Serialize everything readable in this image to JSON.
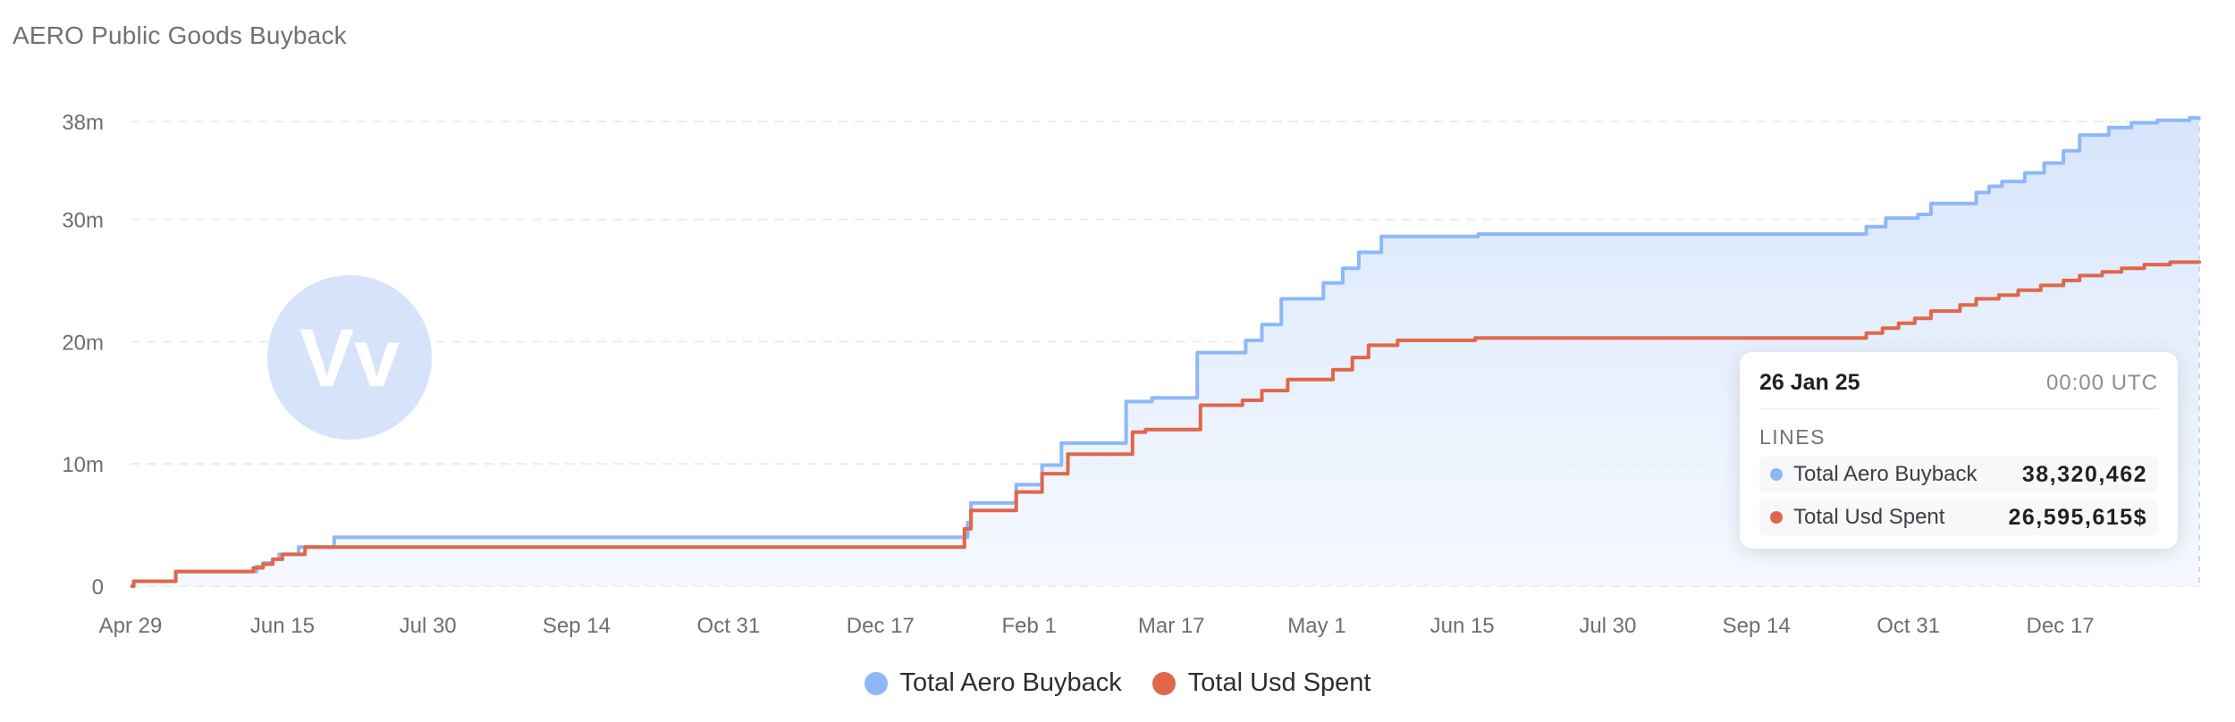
{
  "title": "AERO Public Goods Buyback",
  "colors": {
    "aero": "#8db8f7",
    "usd": "#e0674a",
    "area_top": "#d3e3fc",
    "grid": "#ececec",
    "logo": "#d6e3fb"
  },
  "watermark": {
    "text": "Vv"
  },
  "legend": [
    {
      "label": "Total Aero Buyback",
      "color": "#8db8f7"
    },
    {
      "label": "Total Usd Spent",
      "color": "#e0674a"
    }
  ],
  "tooltip": {
    "date": "26 Jan 25",
    "time": "00:00  UTC",
    "section": "LINES",
    "rows": [
      {
        "label": "Total Aero Buyback",
        "value": "38,320,462",
        "color": "#8db8f7"
      },
      {
        "label": "Total Usd Spent",
        "value": "26,595,615$",
        "color": "#e0674a"
      }
    ]
  },
  "chart_data": {
    "type": "line",
    "title": "AERO Public Goods Buyback",
    "x_unit": "days since Apr 29",
    "x_range": [
      0,
      640
    ],
    "ylim": [
      0,
      38
    ],
    "y_unit": "m",
    "y_ticks": [
      {
        "value": 0,
        "label": "0"
      },
      {
        "value": 10,
        "label": "10m"
      },
      {
        "value": 20,
        "label": "20m"
      },
      {
        "value": 30,
        "label": "30m"
      },
      {
        "value": 38,
        "label": "38m"
      }
    ],
    "x_ticks": [
      {
        "value": 0,
        "label": "Apr 29"
      },
      {
        "value": 47,
        "label": "Jun 15"
      },
      {
        "value": 92,
        "label": "Jul 30"
      },
      {
        "value": 138,
        "label": "Sep 14"
      },
      {
        "value": 185,
        "label": "Oct 31"
      },
      {
        "value": 232,
        "label": "Dec 17"
      },
      {
        "value": 278,
        "label": "Feb 1"
      },
      {
        "value": 322,
        "label": "Mar 17"
      },
      {
        "value": 367,
        "label": "May 1"
      },
      {
        "value": 412,
        "label": "Jun 15"
      },
      {
        "value": 457,
        "label": "Jul 30"
      },
      {
        "value": 503,
        "label": "Sep 14"
      },
      {
        "value": 550,
        "label": "Oct 31"
      },
      {
        "value": 597,
        "label": "Dec 17"
      }
    ],
    "grid": true,
    "legend_position": "bottom-center",
    "series": [
      {
        "name": "Total Aero Buyback",
        "color": "#8db8f7",
        "points": [
          [
            0,
            0
          ],
          [
            1,
            0.4
          ],
          [
            14,
            1.2
          ],
          [
            39,
            1.6
          ],
          [
            41,
            1.9
          ],
          [
            44,
            2.2
          ],
          [
            46,
            2.6
          ],
          [
            52,
            3.2
          ],
          [
            63,
            4.0
          ],
          [
            257,
            4.0
          ],
          [
            259,
            5.2
          ],
          [
            260,
            6.8
          ],
          [
            274,
            8.3
          ],
          [
            282,
            9.9
          ],
          [
            288,
            11.7
          ],
          [
            308,
            15.1
          ],
          [
            316,
            15.4
          ],
          [
            330,
            19.1
          ],
          [
            345,
            20.1
          ],
          [
            350,
            21.4
          ],
          [
            356,
            23.5
          ],
          [
            369,
            24.8
          ],
          [
            375,
            26.0
          ],
          [
            380,
            27.3
          ],
          [
            387,
            28.6
          ],
          [
            417,
            28.8
          ],
          [
            533,
            28.8
          ],
          [
            537,
            29.4
          ],
          [
            543,
            30.1
          ],
          [
            553,
            30.4
          ],
          [
            557,
            31.3
          ],
          [
            571,
            32.2
          ],
          [
            575,
            32.7
          ],
          [
            579,
            33.1
          ],
          [
            586,
            33.8
          ],
          [
            592,
            34.6
          ],
          [
            598,
            35.6
          ],
          [
            603,
            36.9
          ],
          [
            612,
            37.5
          ],
          [
            619,
            37.9
          ],
          [
            627,
            38.1
          ],
          [
            637,
            38.3
          ],
          [
            640,
            38.32
          ]
        ]
      },
      {
        "name": "Total Usd Spent",
        "color": "#e0674a",
        "points": [
          [
            0,
            0
          ],
          [
            1,
            0.4
          ],
          [
            14,
            1.2
          ],
          [
            38,
            1.5
          ],
          [
            41,
            1.8
          ],
          [
            44,
            2.2
          ],
          [
            47,
            2.6
          ],
          [
            54,
            3.2
          ],
          [
            256,
            3.2
          ],
          [
            258,
            4.7
          ],
          [
            260,
            6.2
          ],
          [
            274,
            7.7
          ],
          [
            282,
            9.2
          ],
          [
            290,
            10.8
          ],
          [
            310,
            12.6
          ],
          [
            314,
            12.8
          ],
          [
            331,
            14.8
          ],
          [
            344,
            15.2
          ],
          [
            350,
            16.0
          ],
          [
            358,
            16.9
          ],
          [
            372,
            17.7
          ],
          [
            378,
            18.7
          ],
          [
            383,
            19.7
          ],
          [
            392,
            20.1
          ],
          [
            416,
            20.3
          ],
          [
            533,
            20.3
          ],
          [
            537,
            20.7
          ],
          [
            542,
            21.1
          ],
          [
            547,
            21.5
          ],
          [
            552,
            21.9
          ],
          [
            557,
            22.5
          ],
          [
            566,
            23.0
          ],
          [
            571,
            23.5
          ],
          [
            578,
            23.8
          ],
          [
            584,
            24.2
          ],
          [
            591,
            24.6
          ],
          [
            598,
            25.0
          ],
          [
            603,
            25.4
          ],
          [
            610,
            25.7
          ],
          [
            616,
            26.0
          ],
          [
            623,
            26.3
          ],
          [
            631,
            26.5
          ],
          [
            640,
            26.6
          ]
        ]
      }
    ]
  }
}
